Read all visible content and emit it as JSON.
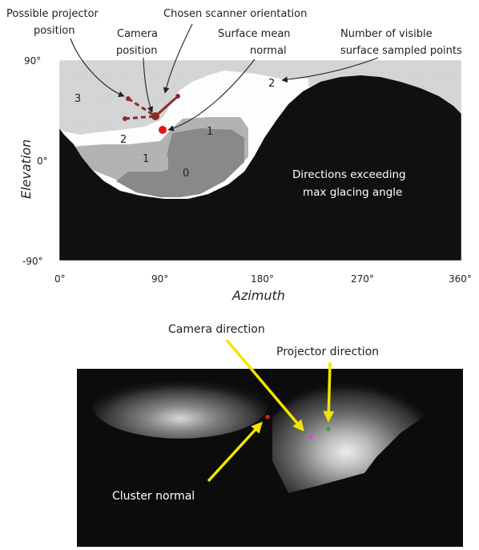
{
  "top": {
    "annotations": {
      "projector_line1": "Possible projector",
      "projector_line2": "position",
      "scanner": "Chosen scanner orientation",
      "camera_line1": "Camera",
      "camera_line2": "position",
      "normal_line1": "Surface mean",
      "normal_line2": "normal",
      "visible_line1": "Number of visible",
      "visible_line2": "surface sampled points",
      "exceed_line1": "Directions exceeding",
      "exceed_line2": "max glacing angle"
    },
    "region_counts": {
      "upper_left": "3",
      "right_bump": "2",
      "left_mid": "2",
      "center_right": "1",
      "center_left": "1",
      "bottom_center": "0"
    },
    "y_ticks": [
      "90°",
      "0°",
      "-90°"
    ],
    "x_ticks": [
      "0°",
      "90°",
      "180°",
      "270°",
      "360°"
    ],
    "xlabel": "Azimuth",
    "ylabel": "Elevation",
    "colors": {
      "exceed": "#101010",
      "count0": "#8a8a8a",
      "count1": "#b4b4b4",
      "count2": "#d6d6d6",
      "count3": "#ffffff",
      "marker": "#8b2d2d",
      "normal": "#ee1111"
    }
  },
  "bottom": {
    "labels": {
      "camera": "Camera direction",
      "projector": "Projector direction",
      "cluster": "Cluster normal"
    },
    "colors": {
      "background": "#0c0c0c",
      "arrow": "#f2e600",
      "camera_dot": "#e040e0",
      "projector_dot": "#22aa33",
      "cluster_dot": "#dd2020"
    }
  }
}
